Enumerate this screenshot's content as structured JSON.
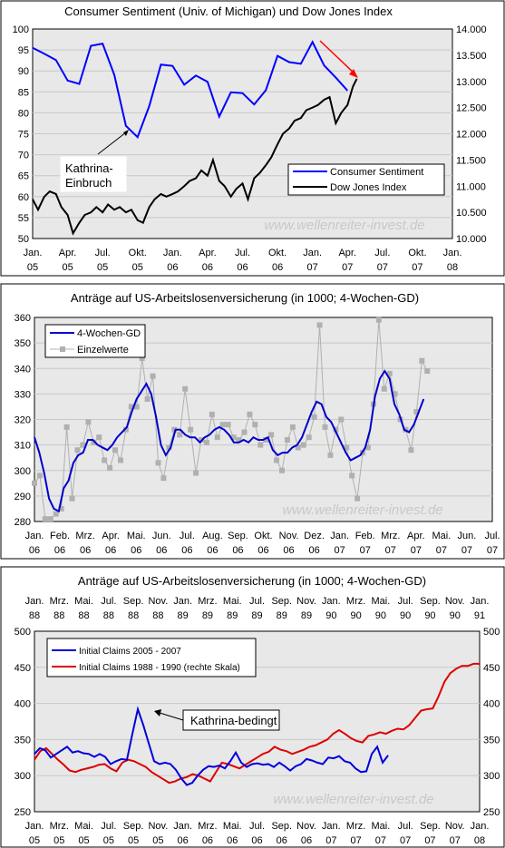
{
  "chart_data": [
    {
      "type": "line",
      "title": "Consumer Sentiment (Univ. of Michigan) und Dow Jones Index",
      "x_ticks": [
        "Jan. 05",
        "Apr. 05",
        "Jul. 05",
        "Okt. 05",
        "Jan. 06",
        "Apr. 06",
        "Jul. 06",
        "Okt. 06",
        "Jan. 07",
        "Apr. 07",
        "Jul. 07",
        "Okt. 07",
        "Jan. 08"
      ],
      "xlim": [
        "2005-01",
        "2008-01"
      ],
      "y_left": {
        "min": 50,
        "max": 100,
        "ticks": [
          "50",
          "55",
          "60",
          "65",
          "70",
          "75",
          "80",
          "85",
          "90",
          "95",
          "100"
        ]
      },
      "y_right": {
        "min": 10000,
        "max": 14000,
        "ticks": [
          "10.000",
          "10.500",
          "11.000",
          "11.500",
          "12.000",
          "12.500",
          "13.000",
          "13.500",
          "14.000"
        ]
      },
      "grid": true,
      "legend_placement": "lower-right",
      "annotations": [
        {
          "text": "Kathrina-",
          "text2": "Einbruch"
        }
      ],
      "series": [
        {
          "name": "Consumer Sentiment",
          "axis": "left",
          "color": "#0000ff",
          "points": [
            [
              "2005-01",
              95.5
            ],
            [
              "2005-02",
              94.1
            ],
            [
              "2005-03",
              92.6
            ],
            [
              "2005-04",
              87.7
            ],
            [
              "2005-05",
              86.9
            ],
            [
              "2005-06",
              96.0
            ],
            [
              "2005-07",
              96.5
            ],
            [
              "2005-08",
              89.1
            ],
            [
              "2005-09",
              76.9
            ],
            [
              "2005-10",
              74.2
            ],
            [
              "2005-11",
              81.6
            ],
            [
              "2005-12",
              91.5
            ],
            [
              "2006-01",
              91.2
            ],
            [
              "2006-02",
              86.7
            ],
            [
              "2006-03",
              88.9
            ],
            [
              "2006-04",
              87.4
            ],
            [
              "2006-05",
              79.1
            ],
            [
              "2006-06",
              84.9
            ],
            [
              "2006-07",
              84.7
            ],
            [
              "2006-08",
              82.0
            ],
            [
              "2006-09",
              85.4
            ],
            [
              "2006-10",
              93.6
            ],
            [
              "2006-11",
              92.1
            ],
            [
              "2006-12",
              91.7
            ],
            [
              "2007-01",
              96.9
            ],
            [
              "2007-02",
              91.3
            ],
            [
              "2007-03",
              88.4
            ],
            [
              "2007-04",
              85.3
            ]
          ]
        },
        {
          "name": "Dow Jones Index",
          "axis": "right",
          "color": "#000000",
          "points": [
            [
              "2005-01",
              10750
            ],
            [
              "2005-01-15",
              10550
            ],
            [
              "2005-02",
              10800
            ],
            [
              "2005-02-15",
              10900
            ],
            [
              "2005-03",
              10850
            ],
            [
              "2005-03-15",
              10600
            ],
            [
              "2005-04",
              10450
            ],
            [
              "2005-04-15",
              10100
            ],
            [
              "2005-05",
              10300
            ],
            [
              "2005-05-15",
              10450
            ],
            [
              "2005-06",
              10500
            ],
            [
              "2005-06-15",
              10600
            ],
            [
              "2005-07",
              10500
            ],
            [
              "2005-07-15",
              10650
            ],
            [
              "2005-08",
              10550
            ],
            [
              "2005-08-15",
              10600
            ],
            [
              "2005-09",
              10500
            ],
            [
              "2005-09-15",
              10550
            ],
            [
              "2005-10",
              10350
            ],
            [
              "2005-10-15",
              10300
            ],
            [
              "2005-11",
              10600
            ],
            [
              "2005-11-15",
              10750
            ],
            [
              "2005-12",
              10850
            ],
            [
              "2005-12-15",
              10800
            ],
            [
              "2006-01",
              10850
            ],
            [
              "2006-01-15",
              10900
            ],
            [
              "2006-02",
              11000
            ],
            [
              "2006-02-15",
              11100
            ],
            [
              "2006-03",
              11150
            ],
            [
              "2006-03-15",
              11300
            ],
            [
              "2006-04",
              11200
            ],
            [
              "2006-04-15",
              11500
            ],
            [
              "2006-05",
              11100
            ],
            [
              "2006-05-15",
              11000
            ],
            [
              "2006-06",
              10800
            ],
            [
              "2006-06-15",
              10950
            ],
            [
              "2006-07",
              11050
            ],
            [
              "2006-07-15",
              10750
            ],
            [
              "2006-08",
              11150
            ],
            [
              "2006-08-15",
              11250
            ],
            [
              "2006-09",
              11400
            ],
            [
              "2006-09-15",
              11550
            ],
            [
              "2006-10",
              11800
            ],
            [
              "2006-10-15",
              12000
            ],
            [
              "2006-11",
              12100
            ],
            [
              "2006-11-15",
              12250
            ],
            [
              "2006-12",
              12300
            ],
            [
              "2006-12-15",
              12450
            ],
            [
              "2007-01",
              12500
            ],
            [
              "2007-01-15",
              12550
            ],
            [
              "2007-02",
              12650
            ],
            [
              "2007-02-15",
              12700
            ],
            [
              "2007-03",
              12200
            ],
            [
              "2007-03-15",
              12400
            ],
            [
              "2007-04",
              12550
            ],
            [
              "2007-04-15",
              12900
            ],
            [
              "2007-04-25",
              13050
            ]
          ]
        }
      ]
    },
    {
      "type": "line",
      "title": "Anträge auf US-Arbeitslosenversicherung (in 1000; 4-Wochen-GD)",
      "x_ticks": [
        "Jan. 06",
        "Feb. 06",
        "Mrz. 06",
        "Apr. 06",
        "Mai. 06",
        "Jun. 06",
        "Jul. 06",
        "Aug. 06",
        "Sep. 06",
        "Okt. 06",
        "Nov. 06",
        "Dez. 06",
        "Jan. 07",
        "Feb. 07",
        "Mrz. 07",
        "Apr. 07",
        "Mai. 07",
        "Jun. 07",
        "Jul. 07"
      ],
      "xlim": [
        "2006-01",
        "2007-07"
      ],
      "ylim": [
        280,
        360
      ],
      "y_ticks": [
        "280",
        "290",
        "300",
        "310",
        "320",
        "330",
        "340",
        "350",
        "360"
      ],
      "grid": true,
      "legend_placement": "top-left",
      "series": [
        {
          "name": "4-Wochen-GD",
          "color": "#0000cc",
          "values": [
            313,
            307,
            299,
            289,
            285,
            284,
            293,
            296,
            303,
            306,
            307,
            312,
            312,
            310,
            309,
            308,
            310,
            313,
            315,
            317,
            323,
            328,
            331,
            334,
            330,
            321,
            310,
            306,
            309,
            316,
            316,
            314,
            313,
            313,
            311,
            313,
            314,
            316,
            317,
            316,
            314,
            311,
            311,
            312,
            311,
            313,
            312,
            312,
            313,
            308,
            306,
            307,
            307,
            309,
            310,
            313,
            318,
            323,
            327,
            326,
            321,
            319,
            315,
            311,
            307,
            304,
            305,
            306,
            309,
            316,
            329,
            336,
            339,
            336,
            326,
            322,
            316,
            315,
            318,
            323,
            328
          ]
        },
        {
          "name": "Einzelwerte",
          "color": "#aaaaaa",
          "values": [
            295,
            298,
            281,
            281,
            283,
            285,
            317,
            289,
            308,
            310,
            319,
            311,
            313,
            304,
            301,
            308,
            304,
            316,
            325,
            325,
            344,
            328,
            337,
            303,
            297,
            309,
            316,
            314,
            332,
            316,
            299,
            312,
            311,
            322,
            313,
            318,
            318,
            313,
            312,
            315,
            322,
            318,
            310,
            312,
            314,
            304,
            300,
            312,
            317,
            309,
            310,
            313,
            321,
            357,
            317,
            306,
            316,
            320,
            309,
            298,
            289,
            307,
            309,
            326,
            359,
            332,
            338,
            330,
            320,
            316,
            308,
            323,
            343,
            339
          ]
        }
      ]
    },
    {
      "type": "line",
      "title": "Anträge auf US-Arbeitslosenversicherung (in 1000; 4-Wochen-GD)",
      "x_ticks_top": [
        "Jan. 88",
        "Mrz. 88",
        "Mai. 88",
        "Jul. 88",
        "Sep. 88",
        "Nov. 88",
        "Jan. 89",
        "Mrz. 89",
        "Mai. 89",
        "Jul. 89",
        "Sep. 89",
        "Nov. 89",
        "Jan. 90",
        "Mrz. 90",
        "Mai. 90",
        "Jul. 90",
        "Sep. 90",
        "Nov. 90",
        "Jan. 91"
      ],
      "x_ticks_bottom": [
        "Jan. 05",
        "Mrz. 05",
        "Mai. 05",
        "Jul. 05",
        "Sep. 05",
        "Nov. 05",
        "Jan. 06",
        "Mrz. 06",
        "Mai. 06",
        "Jul. 06",
        "Sep. 06",
        "Nov. 06",
        "Jan. 07",
        "Mrz. 07",
        "Mai. 07",
        "Jul. 07",
        "Sep. 07",
        "Nov. 07",
        "Jan. 08"
      ],
      "ylim": [
        250,
        500
      ],
      "y_ticks": [
        "250",
        "300",
        "350",
        "400",
        "450",
        "500"
      ],
      "grid": true,
      "legend_placement": "top-left",
      "annotations": [
        {
          "text": "Kathrina-bedingt"
        }
      ],
      "series": [
        {
          "name": "Initial Claims 2005 - 2007",
          "axis": "left",
          "color": "#0000dd",
          "values": [
            330,
            338,
            335,
            325,
            330,
            335,
            340,
            332,
            334,
            331,
            330,
            326,
            330,
            326,
            316,
            320,
            323,
            322,
            358,
            392,
            370,
            345,
            320,
            316,
            318,
            316,
            308,
            296,
            287,
            290,
            300,
            308,
            313,
            312,
            314,
            310,
            320,
            332,
            318,
            312,
            316,
            317,
            315,
            316,
            312,
            318,
            313,
            307,
            313,
            316,
            323,
            321,
            318,
            316,
            325,
            324,
            327,
            320,
            318,
            310,
            305,
            306,
            330,
            340,
            318,
            328
          ]
        },
        {
          "name": "Initial Claims 1988 - 1990 (rechte Skala)",
          "axis": "right",
          "color": "#dd0000",
          "values": [
            322,
            334,
            338,
            330,
            322,
            315,
            307,
            305,
            308,
            310,
            312,
            315,
            316,
            310,
            306,
            318,
            322,
            320,
            316,
            312,
            305,
            300,
            295,
            290,
            292,
            296,
            298,
            302,
            300,
            296,
            292,
            305,
            318,
            316,
            313,
            310,
            315,
            320,
            325,
            330,
            333,
            340,
            336,
            334,
            330,
            333,
            336,
            340,
            342,
            346,
            350,
            358,
            363,
            358,
            352,
            348,
            346,
            355,
            357,
            360,
            358,
            362,
            365,
            364,
            370,
            380,
            390,
            392,
            393,
            410,
            430,
            442,
            448,
            452,
            452,
            455,
            455
          ]
        }
      ]
    }
  ],
  "watermark": "www.wellenreiter-invest.de",
  "colors": {
    "plot_bg": "#e8e8e8",
    "grid": "#c8c8c8",
    "frame": "#000000"
  }
}
